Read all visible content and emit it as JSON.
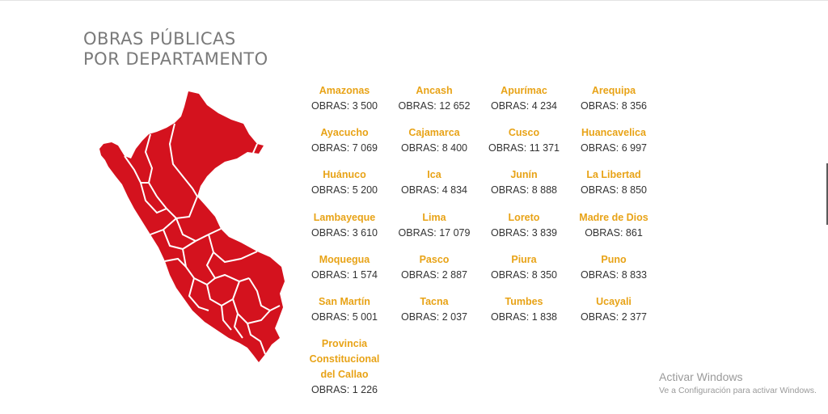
{
  "header": {
    "title_line1": "OBRAS PÚBLICAS",
    "title_line2": "POR DEPARTAMENTO"
  },
  "map": {
    "fill_color": "#d4121e",
    "border_color": "#ffffff"
  },
  "colors": {
    "department_name": "#e8a317",
    "count_text": "#333333",
    "title": "#7a7a7a"
  },
  "departments": [
    {
      "name": "Amazonas",
      "count": "OBRAS: 3 500"
    },
    {
      "name": "Ancash",
      "count": "OBRAS: 12 652"
    },
    {
      "name": "Apurímac",
      "count": "OBRAS: 4 234"
    },
    {
      "name": "Arequipa",
      "count": "OBRAS: 8 356"
    },
    {
      "name": "Ayacucho",
      "count": "OBRAS: 7 069"
    },
    {
      "name": "Cajamarca",
      "count": "OBRAS: 8 400"
    },
    {
      "name": "Cusco",
      "count": "OBRAS: 11 371"
    },
    {
      "name": "Huancavelica",
      "count": "OBRAS: 6 997"
    },
    {
      "name": "Huánuco",
      "count": "OBRAS: 5 200"
    },
    {
      "name": "Ica",
      "count": "OBRAS: 4 834"
    },
    {
      "name": "Junín",
      "count": "OBRAS: 8 888"
    },
    {
      "name": "La Libertad",
      "count": "OBRAS: 8 850"
    },
    {
      "name": "Lambayeque",
      "count": "OBRAS: 3 610"
    },
    {
      "name": "Lima",
      "count": "OBRAS: 17 079"
    },
    {
      "name": "Loreto",
      "count": "OBRAS: 3 839"
    },
    {
      "name": "Madre de Dios",
      "count": "OBRAS: 861"
    },
    {
      "name": "Moquegua",
      "count": "OBRAS: 1 574"
    },
    {
      "name": "Pasco",
      "count": "OBRAS: 2 887"
    },
    {
      "name": "Piura",
      "count": "OBRAS: 8 350"
    },
    {
      "name": "Puno",
      "count": "OBRAS: 8 833"
    },
    {
      "name": "San Martín",
      "count": "OBRAS: 5 001"
    },
    {
      "name": "Tacna",
      "count": "OBRAS: 2 037"
    },
    {
      "name": "Tumbes",
      "count": "OBRAS: 1 838"
    },
    {
      "name": "Ucayali",
      "count": "OBRAS: 2 377"
    }
  ],
  "callao": {
    "name_line1": "Provincia",
    "name_line2": "Constitucional",
    "name_line3": "del Callao",
    "count": "OBRAS: 1 226"
  },
  "watermark": {
    "title": "Activar Windows",
    "subtitle": "Ve a Configuración para activar Windows."
  }
}
